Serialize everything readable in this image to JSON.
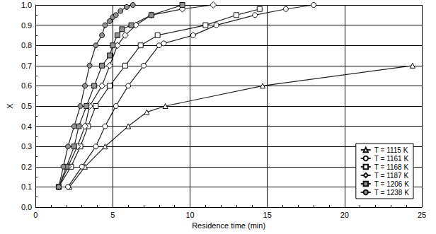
{
  "chart_data": {
    "type": "line",
    "x_label": "Residence time (min)",
    "y_label": "X",
    "xlim": [
      0,
      25
    ],
    "xticks": [
      0,
      5,
      10,
      15,
      20,
      25
    ],
    "ylim": [
      0,
      1
    ],
    "yticks": [
      {
        "value": 0,
        "label": "0.0"
      },
      {
        "value": 0.1,
        "label": "0.1"
      },
      {
        "value": 0.2,
        "label": "0.2"
      },
      {
        "value": 0.3,
        "label": "0.3"
      },
      {
        "value": 0.4,
        "label": "0.4"
      },
      {
        "value": 0.5,
        "label": "0.5"
      },
      {
        "value": 0.6,
        "label": "0.6"
      },
      {
        "value": 0.7,
        "label": "0.7"
      },
      {
        "value": 0.8,
        "label": "0.8"
      },
      {
        "value": 0.9,
        "label": "0.9"
      },
      {
        "value": 1,
        "label": "1.0"
      }
    ],
    "grid": true,
    "legend": "lower right",
    "series": [
      {
        "name": "T = 1115 K",
        "marker": "triangle",
        "color": "#ffffff",
        "x": [
          2.2,
          3.2,
          4.5,
          6.0,
          7.2,
          8.4,
          14.7,
          24.4
        ],
        "values": [
          0.1,
          0.2,
          0.3,
          0.4,
          0.47,
          0.5,
          0.6,
          0.7
        ]
      },
      {
        "name": "T = 1161 K",
        "marker": "circle",
        "color": "#ffffff",
        "x": [
          2.1,
          3.0,
          3.9,
          4.5,
          5.2,
          6.0,
          7.0,
          8.0,
          8.3,
          10.2,
          11.7,
          14.2,
          16.2,
          18.0
        ],
        "values": [
          0.1,
          0.2,
          0.3,
          0.4,
          0.5,
          0.6,
          0.7,
          0.8,
          0.81,
          0.85,
          0.9,
          0.95,
          0.98,
          1.0
        ]
      },
      {
        "name": "T = 1168 K",
        "marker": "square",
        "color": "#ffffff",
        "x": [
          1.5,
          2.3,
          2.9,
          3.4,
          3.9,
          4.8,
          5.8,
          6.8,
          7.9,
          11.0,
          13.0,
          14.5
        ],
        "values": [
          0.1,
          0.2,
          0.3,
          0.4,
          0.5,
          0.6,
          0.7,
          0.8,
          0.85,
          0.9,
          0.95,
          0.98
        ]
      },
      {
        "name": "T = 1187 K",
        "marker": "diamond",
        "color": "#ffffff",
        "x": [
          1.5,
          2.1,
          2.7,
          3.2,
          3.5,
          4.3,
          4.8,
          5.3,
          5.8,
          6.5,
          7.5,
          9.5,
          11.5
        ],
        "values": [
          0.1,
          0.2,
          0.3,
          0.4,
          0.5,
          0.6,
          0.7,
          0.8,
          0.85,
          0.9,
          0.95,
          0.98,
          1.0
        ]
      },
      {
        "name": "T = 1206 K",
        "marker": "square",
        "color": "#909090",
        "x": [
          1.5,
          2.0,
          2.5,
          2.8,
          3.3,
          3.8,
          4.3,
          4.8,
          5.0,
          5.3,
          5.6,
          6.2,
          7.5,
          9.5
        ],
        "values": [
          0.1,
          0.2,
          0.3,
          0.4,
          0.5,
          0.6,
          0.7,
          0.75,
          0.8,
          0.85,
          0.88,
          0.9,
          0.95,
          1.0
        ]
      },
      {
        "name": "T = 1238 K",
        "marker": "circle",
        "color": "#909090",
        "x": [
          1.5,
          1.8,
          2.1,
          2.5,
          2.9,
          3.2,
          3.5,
          3.9,
          4.3,
          4.5,
          4.8,
          5.0,
          5.2,
          5.5,
          5.9,
          6.3
        ],
        "values": [
          0.1,
          0.2,
          0.3,
          0.4,
          0.5,
          0.6,
          0.7,
          0.8,
          0.85,
          0.9,
          0.92,
          0.94,
          0.95,
          0.97,
          0.99,
          1.0
        ]
      }
    ]
  }
}
